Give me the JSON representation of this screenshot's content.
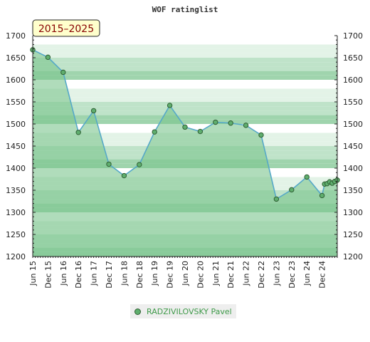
{
  "chart_data": {
    "type": "area",
    "title": "WOF ratinglist",
    "period_label": "2015–2025",
    "ylim": [
      1200,
      1700
    ],
    "yticks": [
      1200,
      1250,
      1300,
      1350,
      1400,
      1450,
      1500,
      1550,
      1600,
      1650,
      1700
    ],
    "x_tick_labels": [
      "Jun 15",
      "Dec 15",
      "Jun 16",
      "Dec 16",
      "Jun 17",
      "Dec 17",
      "Jun 18",
      "Dec 18",
      "Jun 19",
      "Dec 19",
      "Jun 20",
      "Dec 20",
      "Jun 21",
      "Dec 21",
      "Jun 22",
      "Dec 22",
      "Jun 23",
      "Dec 23",
      "Jun 24",
      "Dec 24"
    ],
    "series": [
      {
        "name": "RADZIVILOVSKY Pavel",
        "x": [
          "Jun 15",
          "Dec 15",
          "Jun 16",
          "Dec 16",
          "Jun 17",
          "Dec 17",
          "Jun 18",
          "Dec 18",
          "Jun 19",
          "Dec 19",
          "Jun 20",
          "Dec 20",
          "Jun 21",
          "Dec 21",
          "Jun 22",
          "Dec 22",
          "Jun 23",
          "Dec 23",
          "Jun 24",
          "Dec 24",
          "Jan 25",
          "Feb 25",
          "Mar 25",
          "Apr 25",
          "May 25",
          "Jun 25"
        ],
        "values": [
          1668,
          1651,
          1617,
          1481,
          1530,
          1409,
          1383,
          1408,
          1482,
          1542,
          1493,
          1483,
          1504,
          1502,
          1497,
          1475,
          1330,
          1351,
          1380,
          1338,
          1364,
          1365,
          1369,
          1366,
          1370,
          1373
        ]
      }
    ],
    "legend": {
      "placement": "bottom-center"
    },
    "colors": {
      "line": "#55a8c8",
      "area": "#7cc48e",
      "marker_fill": "#5fae6e",
      "marker_stroke": "#2f5f33",
      "title_box_fill": "#ffffcc",
      "title_box_text": "#880000",
      "legend_text": "#3f9a4a",
      "band_colors": [
        "#ffffff",
        "#e3f3e7",
        "#bfe3c9",
        "#9fd4ad"
      ]
    }
  }
}
